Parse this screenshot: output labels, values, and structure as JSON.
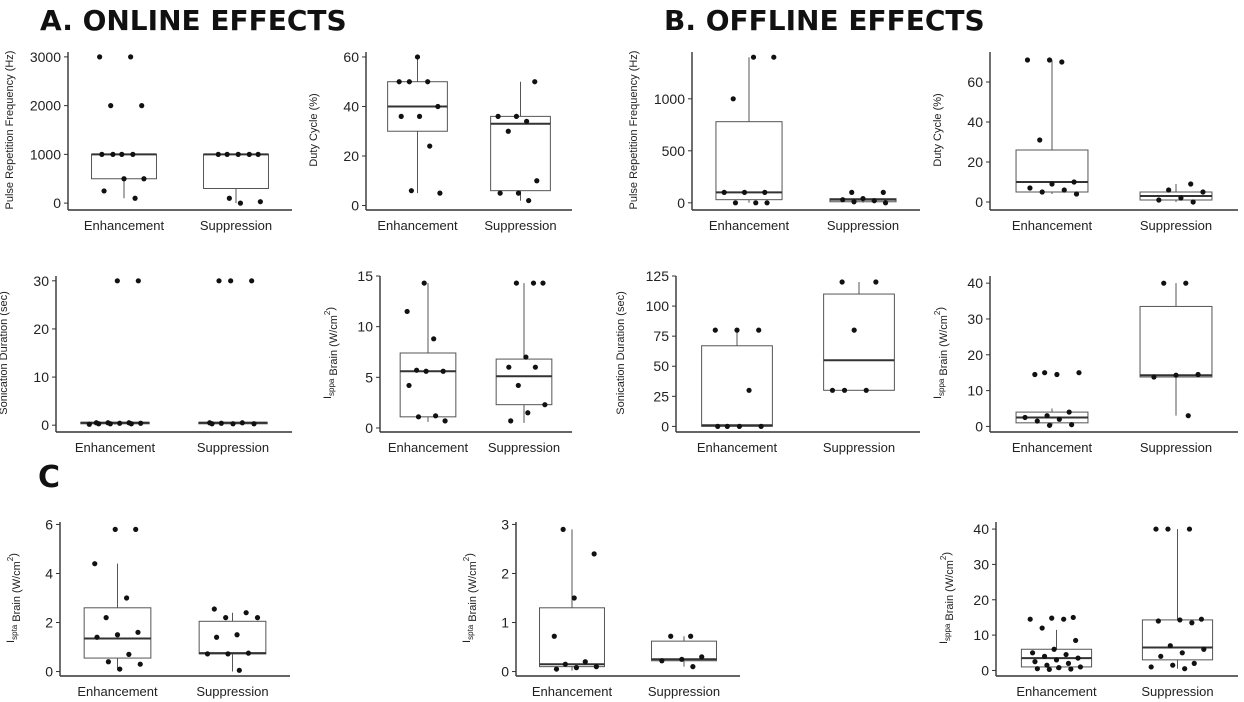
{
  "sections": {
    "a": "A. ONLINE EFFECTS",
    "b": "B. OFFLINE EFFECTS",
    "c": "C"
  },
  "colors": {
    "box_stroke": "#555555",
    "axis": "#333333",
    "point": "#111111",
    "median": "#333333"
  },
  "chart_data": [
    {
      "type": "box",
      "ylabel": "Pulse Repetition Frequency (Hz)",
      "categories": [
        "Enhancement",
        "Suppression"
      ],
      "ylim": [
        -100,
        3100
      ],
      "yticks": [
        0,
        1000,
        2000,
        3000
      ],
      "boxes": [
        {
          "q1": 500,
          "median": 1000,
          "q3": 1000,
          "lo": 100,
          "hi": 1000,
          "points": [
            3000,
            3000,
            2000,
            2000,
            1000,
            1000,
            1000,
            1000,
            500,
            500,
            250,
            100
          ]
        },
        {
          "q1": 300,
          "median": 1000,
          "q3": 1000,
          "lo": 0,
          "hi": 1000,
          "points": [
            1000,
            1000,
            1000,
            1000,
            1000,
            100,
            30,
            0
          ]
        }
      ]
    },
    {
      "type": "box",
      "ylabel": "Duty Cycle (%)",
      "categories": [
        "Enhancement",
        "Suppression"
      ],
      "ylim": [
        -1,
        62
      ],
      "yticks": [
        0,
        20,
        40,
        60
      ],
      "boxes": [
        {
          "q1": 30,
          "median": 40,
          "q3": 50,
          "lo": 5,
          "hi": 60,
          "points": [
            60,
            50,
            50,
            50,
            40,
            36,
            36,
            24,
            6,
            5
          ]
        },
        {
          "q1": 6,
          "median": 33,
          "q3": 36,
          "lo": 2,
          "hi": 50,
          "points": [
            50,
            36,
            36,
            34,
            30,
            10,
            5,
            5,
            2
          ]
        }
      ]
    },
    {
      "type": "box",
      "ylabel": "Pulse Repetition Frequency (Hz)",
      "categories": [
        "Enhancement",
        "Suppression"
      ],
      "ylim": [
        -50,
        1450
      ],
      "yticks": [
        0,
        500,
        1000
      ],
      "boxes": [
        {
          "q1": 30,
          "median": 100,
          "q3": 780,
          "lo": 0,
          "hi": 1400,
          "points": [
            1400,
            1400,
            1000,
            100,
            100,
            100,
            0,
            0,
            0
          ]
        },
        {
          "q1": 10,
          "median": 30,
          "q3": 40,
          "lo": 0,
          "hi": 60,
          "points": [
            100,
            100,
            40,
            30,
            20,
            10,
            0
          ]
        }
      ]
    },
    {
      "type": "box",
      "ylabel": "Duty Cycle (%)",
      "categories": [
        "Enhancement",
        "Suppression"
      ],
      "ylim": [
        -3,
        75
      ],
      "yticks": [
        0,
        20,
        40,
        60
      ],
      "boxes": [
        {
          "q1": 5,
          "median": 10,
          "q3": 26,
          "lo": 4,
          "hi": 71,
          "points": [
            71,
            71,
            70,
            31,
            10,
            9,
            7,
            6,
            5,
            4
          ]
        },
        {
          "q1": 1,
          "median": 3,
          "q3": 5,
          "lo": 0,
          "hi": 9,
          "points": [
            9,
            6,
            5,
            2,
            1,
            0
          ]
        }
      ]
    },
    {
      "type": "box",
      "ylabel": "Sonication Duration (sec)",
      "categories": [
        "Enhancement",
        "Suppression"
      ],
      "ylim": [
        -1,
        31
      ],
      "yticks": [
        0,
        10,
        20,
        30
      ],
      "boxes": [
        {
          "q1": 0.3,
          "median": 0.5,
          "q3": 0.6,
          "lo": 0.1,
          "hi": 0.7,
          "points": [
            30,
            30,
            0.5,
            0.5,
            0.5,
            0.4,
            0.4,
            0.3,
            0.3,
            0.3,
            0.2
          ]
        },
        {
          "q1": 0.3,
          "median": 0.5,
          "q3": 0.6,
          "lo": 0.1,
          "hi": 0.7,
          "points": [
            30,
            30,
            30,
            0.5,
            0.5,
            0.4,
            0.3,
            0.3,
            0.3
          ]
        }
      ]
    },
    {
      "type": "box",
      "ylabel": "Isppa Brain (W/cm2)",
      "ylabel_main": "I",
      "ylabel_sub": "sppa",
      "ylabel_rest": " Brain (W/cm",
      "ylabel_sup": "2",
      "ylabel_end": ")",
      "categories": [
        "Enhancement",
        "Suppression"
      ],
      "ylim": [
        -0.2,
        15
      ],
      "yticks": [
        0,
        5,
        10,
        15
      ],
      "boxes": [
        {
          "q1": 1.1,
          "median": 5.6,
          "q3": 7.4,
          "lo": 0.6,
          "hi": 14.3,
          "points": [
            14.3,
            11.5,
            8.8,
            5.7,
            5.6,
            5.6,
            4.2,
            1.2,
            1.1,
            0.7
          ]
        },
        {
          "q1": 2.3,
          "median": 5.1,
          "q3": 6.8,
          "lo": 0.5,
          "hi": 14.3,
          "points": [
            14.3,
            14.3,
            14.3,
            7,
            6,
            6,
            4.2,
            2.3,
            1.5,
            0.7
          ]
        }
      ]
    },
    {
      "type": "box",
      "ylabel": "Sonication Duration (sec)",
      "categories": [
        "Enhancement",
        "Suppression"
      ],
      "ylim": [
        -3,
        125
      ],
      "yticks": [
        0,
        25,
        50,
        75,
        100,
        125
      ],
      "boxes": [
        {
          "q1": 0,
          "median": 1,
          "q3": 67,
          "lo": 0,
          "hi": 80,
          "points": [
            80,
            80,
            80,
            30,
            0,
            0,
            0,
            0
          ]
        },
        {
          "q1": 30,
          "median": 55,
          "q3": 110,
          "lo": 30,
          "hi": 120,
          "points": [
            120,
            120,
            80,
            30,
            30,
            30
          ]
        }
      ]
    },
    {
      "type": "box",
      "ylabel": "Isppa Brain (W/cm2)",
      "ylabel_main": "I",
      "ylabel_sub": "sppa",
      "ylabel_rest": " Brain (W/cm",
      "ylabel_sup": "2",
      "ylabel_end": ")",
      "categories": [
        "Enhancement",
        "Suppression"
      ],
      "ylim": [
        -1,
        42
      ],
      "yticks": [
        0,
        10,
        20,
        30,
        40
      ],
      "boxes": [
        {
          "q1": 1,
          "median": 2.5,
          "q3": 4,
          "lo": 0.3,
          "hi": 5,
          "points": [
            15,
            15,
            14.5,
            14.5,
            4,
            3,
            2.5,
            2,
            1.5,
            0.5,
            0.3
          ]
        },
        {
          "q1": 13.8,
          "median": 14.3,
          "q3": 33.5,
          "lo": 3,
          "hi": 40,
          "points": [
            40,
            40,
            14.5,
            14.3,
            13.8,
            3
          ]
        }
      ]
    },
    {
      "type": "box",
      "ylabel": "Ispta Brain (W/cm2)",
      "ylabel_main": "I",
      "ylabel_sub": "spta",
      "ylabel_rest": " Brain (W/cm",
      "ylabel_sup": "2",
      "ylabel_end": ")",
      "categories": [
        "Enhancement",
        "Suppression"
      ],
      "ylim": [
        -0.1,
        6.1
      ],
      "yticks": [
        0,
        2,
        4,
        6
      ],
      "boxes": [
        {
          "q1": 0.55,
          "median": 1.35,
          "q3": 2.6,
          "lo": 0.05,
          "hi": 4.4,
          "points": [
            5.8,
            5.8,
            4.4,
            3,
            2.2,
            1.6,
            1.5,
            1.4,
            0.7,
            0.4,
            0.3,
            0.1
          ]
        },
        {
          "q1": 0.72,
          "median": 0.75,
          "q3": 2.05,
          "lo": 0,
          "hi": 2.4,
          "points": [
            2.55,
            2.4,
            2.2,
            2.2,
            1.5,
            1.4,
            0.75,
            0.72,
            0.72,
            0.05
          ]
        }
      ]
    },
    {
      "type": "box",
      "ylabel": "Ispta Brain (W/cm2)",
      "ylabel_main": "I",
      "ylabel_sub": "spta",
      "ylabel_rest": " Brain (W/cm",
      "ylabel_sup": "2",
      "ylabel_end": ")",
      "categories": [
        "Enhancement",
        "Suppression"
      ],
      "ylim": [
        -0.05,
        3.05
      ],
      "yticks": [
        0,
        1,
        2,
        3
      ],
      "boxes": [
        {
          "q1": 0.1,
          "median": 0.15,
          "q3": 1.3,
          "lo": 0.02,
          "hi": 2.9,
          "points": [
            2.9,
            2.4,
            1.5,
            0.72,
            0.2,
            0.15,
            0.1,
            0.08,
            0.05
          ]
        },
        {
          "q1": 0.22,
          "median": 0.25,
          "q3": 0.62,
          "lo": 0.1,
          "hi": 0.72,
          "points": [
            0.72,
            0.72,
            0.3,
            0.25,
            0.22,
            0.1
          ]
        }
      ]
    },
    {
      "type": "box",
      "ylabel": "Isppa Brain (W/cm2)",
      "ylabel_main": "I",
      "ylabel_sub": "sppa",
      "ylabel_rest": " Brain (W/cm",
      "ylabel_sup": "2",
      "ylabel_end": ")",
      "categories": [
        "Enhancement",
        "Suppression"
      ],
      "ylim": [
        -1,
        42
      ],
      "yticks": [
        0,
        10,
        20,
        30,
        40
      ],
      "boxes": [
        {
          "q1": 1,
          "median": 3.5,
          "q3": 6,
          "lo": 0.3,
          "hi": 11.5,
          "points": [
            15,
            14.8,
            14.5,
            14.5,
            12,
            8.5,
            6,
            5,
            4.5,
            4,
            3.5,
            3,
            2.5,
            2,
            1.5,
            1,
            0.8,
            0.5,
            0.4,
            0.3
          ]
        },
        {
          "q1": 3,
          "median": 6.5,
          "q3": 14.3,
          "lo": 0.5,
          "hi": 40,
          "points": [
            40,
            40,
            40,
            14.5,
            14.3,
            14,
            13.5,
            7,
            6,
            5,
            4,
            2,
            1.5,
            1,
            0.5
          ]
        }
      ]
    }
  ]
}
